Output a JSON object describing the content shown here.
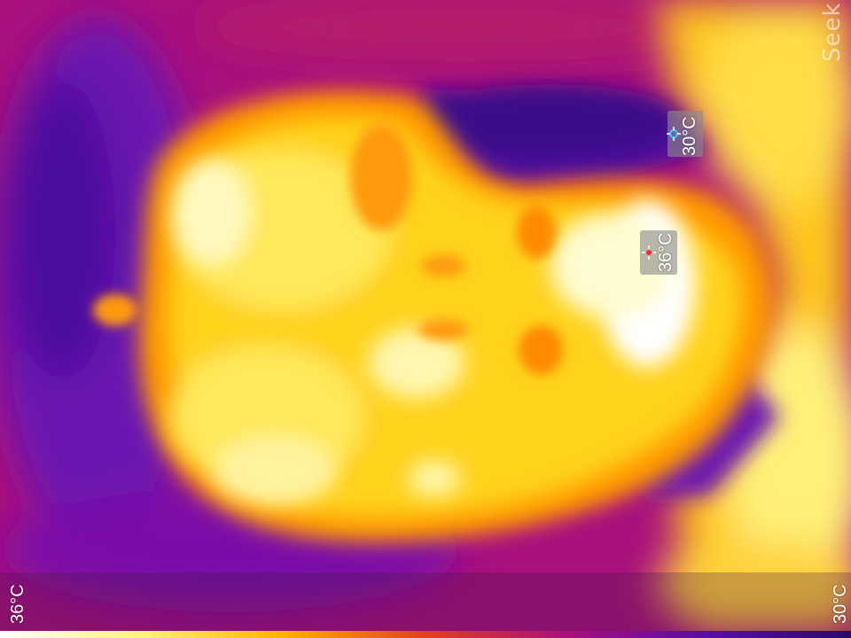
{
  "image": {
    "subject": "thermal-camera image of a person's face",
    "palette": [
      "#ffffff",
      "#fff27a",
      "#ffd21a",
      "#ff9a00",
      "#e0401e",
      "#a8107c",
      "#7a0cb4",
      "#4b0d9c",
      "#2a0a6a"
    ]
  },
  "overlay": {
    "brand": "Seek",
    "cold_spot": {
      "temp": "30°C",
      "color": "#40c8ff"
    },
    "hot_spot": {
      "temp": "36°C",
      "color": "#ff2a2a"
    }
  },
  "scale": {
    "max_label": "36°C",
    "min_label": "30°C",
    "gradient_colors": [
      "#ffffff",
      "#fff27a",
      "#ffb000",
      "#e0401e",
      "#a8107c",
      "#5a0ca8",
      "#2a0a6a"
    ]
  }
}
